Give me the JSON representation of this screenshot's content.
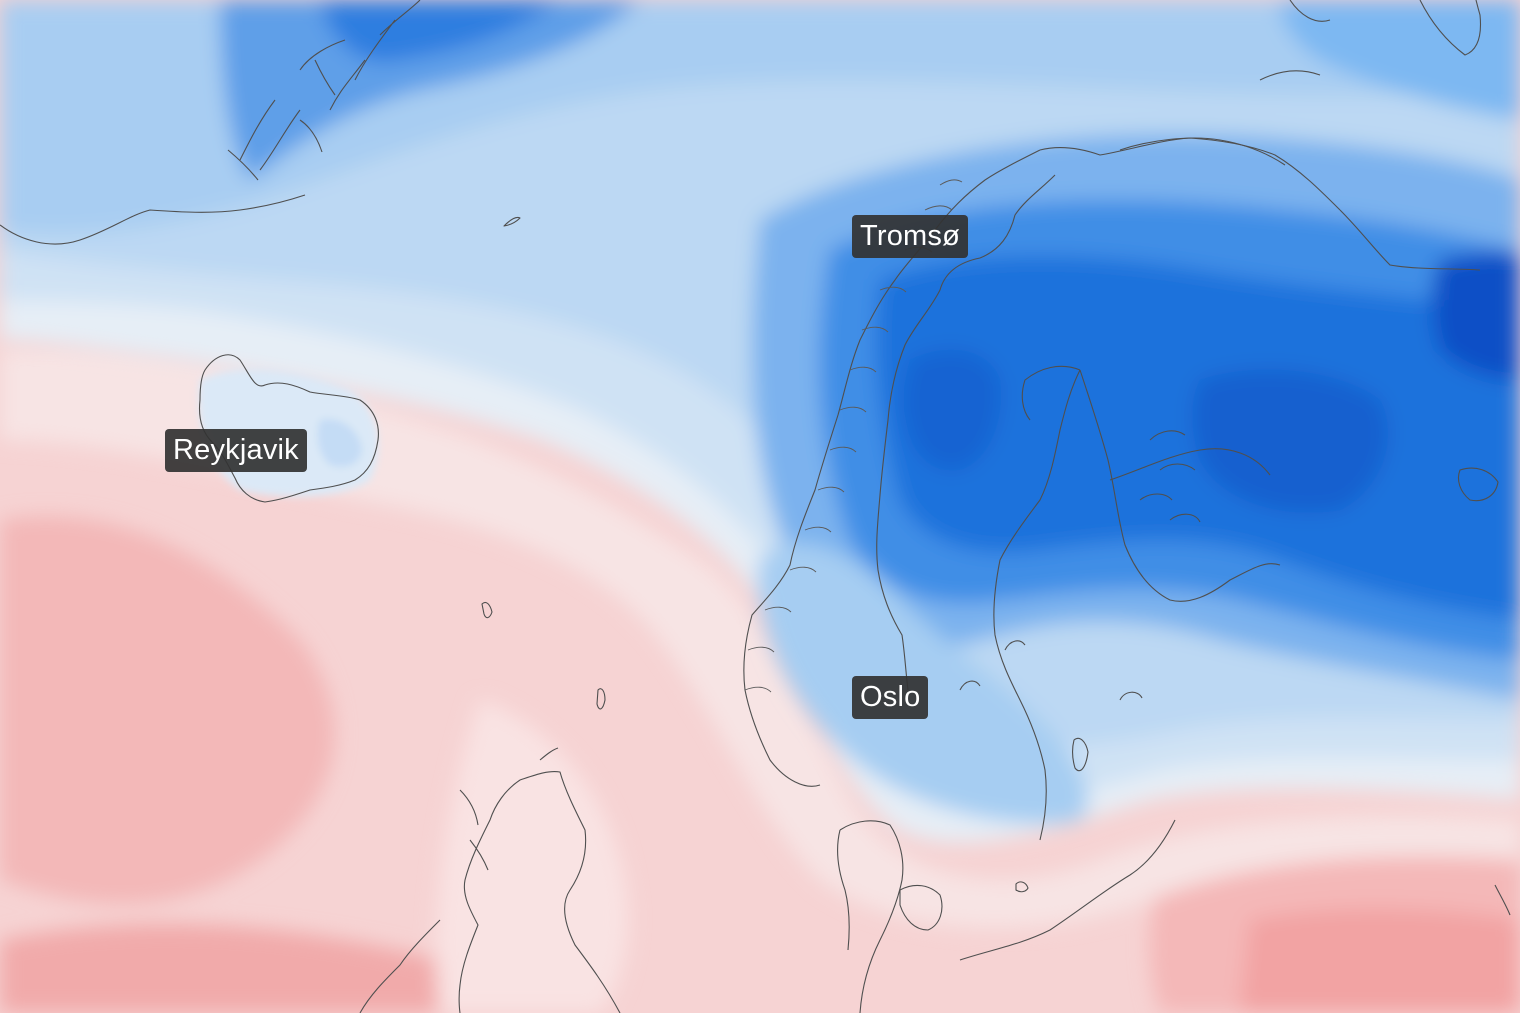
{
  "map": {
    "layer": "temperature",
    "colors": {
      "cold_deep": "#0040c0",
      "cold_strong": "#0a66d8",
      "cold": "#2b86ec",
      "cool": "#7ab8f0",
      "cool_light": "#bcdcf6",
      "neutral": "#eef2f6",
      "warm_light": "#f7e1e1",
      "warm": "#f4c7c7",
      "warm_strong": "#f3a8a8",
      "coastline": "#555555"
    },
    "cities": [
      {
        "name": "Tromsø"
      },
      {
        "name": "Reykjavik"
      },
      {
        "name": "Oslo"
      }
    ]
  }
}
